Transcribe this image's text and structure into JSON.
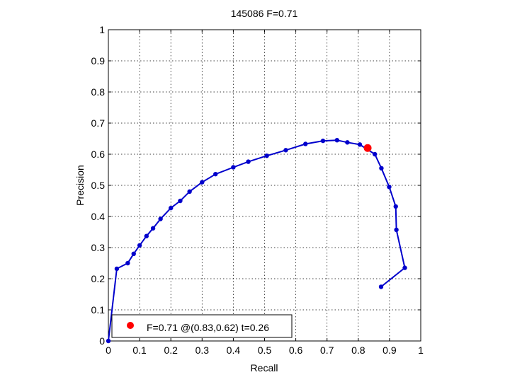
{
  "chart_data": {
    "type": "line",
    "title": "145086 F=0.71",
    "xlabel": "Recall",
    "ylabel": "Precision",
    "xlim": [
      0,
      1
    ],
    "ylim": [
      0,
      1
    ],
    "xticks": [
      "0",
      "0.1",
      "0.2",
      "0.3",
      "0.4",
      "0.5",
      "0.6",
      "0.7",
      "0.8",
      "0.9",
      "1"
    ],
    "yticks": [
      "0",
      "0.1",
      "0.2",
      "0.3",
      "0.4",
      "0.5",
      "0.6",
      "0.7",
      "0.8",
      "0.9",
      "1"
    ],
    "grid": true,
    "series": [
      {
        "color": "#0000cc",
        "x": [
          0.0,
          0.027,
          0.062,
          0.081,
          0.1,
          0.122,
          0.143,
          0.167,
          0.2,
          0.23,
          0.26,
          0.3,
          0.343,
          0.4,
          0.448,
          0.507,
          0.568,
          0.631,
          0.687,
          0.732,
          0.765,
          0.805,
          0.853,
          0.874,
          0.899,
          0.92,
          0.922,
          0.949,
          0.873
        ],
        "y": [
          0.0,
          0.232,
          0.25,
          0.28,
          0.307,
          0.337,
          0.362,
          0.392,
          0.427,
          0.45,
          0.48,
          0.51,
          0.536,
          0.558,
          0.576,
          0.595,
          0.613,
          0.633,
          0.643,
          0.645,
          0.638,
          0.631,
          0.6,
          0.555,
          0.495,
          0.432,
          0.357,
          0.235,
          0.174
        ]
      }
    ],
    "best_point": {
      "x": 0.83,
      "y": 0.62,
      "color": "#ff0000"
    },
    "legend": {
      "position": "bottom-left",
      "label": "F=0.71 @(0.83,0.62) t=0.26"
    }
  }
}
